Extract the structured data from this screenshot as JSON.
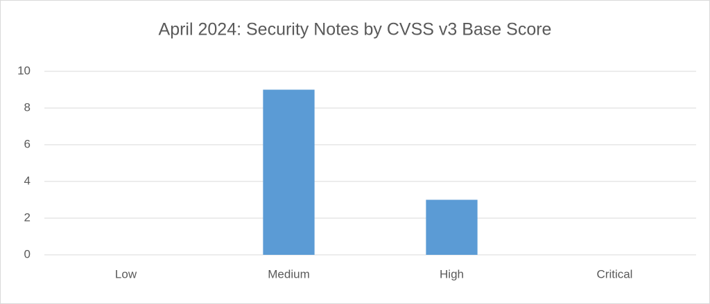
{
  "chart_data": {
    "type": "bar",
    "title": "April 2024: Security Notes by CVSS v3 Base Score",
    "categories": [
      "Low",
      "Medium",
      "High",
      "Critical"
    ],
    "values": [
      0,
      9,
      3,
      0
    ],
    "color": "#5b9bd5",
    "ylim": [
      0,
      10
    ],
    "yticks": [
      0,
      2,
      4,
      6,
      8,
      10
    ],
    "grid": true
  }
}
